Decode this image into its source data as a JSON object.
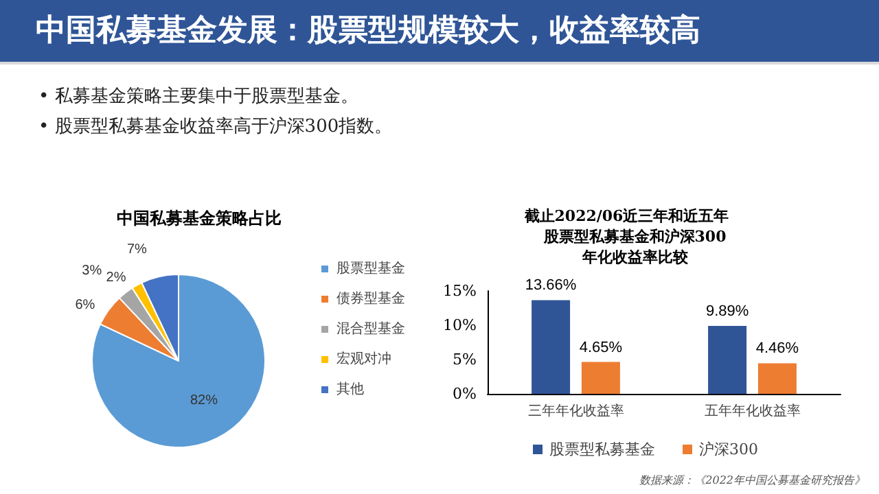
{
  "chart_data": [
    {
      "type": "other",
      "title": "中国私募基金发展：股票型规模较大，收益率较高",
      "annotations": [
        "•  私募基金策略主要集中于股票型基金。",
        "•  股票型私募基金收益率高于沪深300指数。"
      ]
    },
    {
      "type": "pie",
      "title": "中国私募基金策略占比",
      "categories": [
        "股票型基金",
        "债券型基金",
        "混合型基金",
        "宏观对冲",
        "其他"
      ],
      "values": [
        82,
        6,
        3,
        2,
        7
      ],
      "colors": [
        "#5b9bd5",
        "#ed7d31",
        "#a5a5a5",
        "#ffc000",
        "#4472c4"
      ],
      "value_labels": [
        "82%",
        "6%",
        "3%",
        "2%",
        "7%"
      ],
      "legend": "right"
    },
    {
      "type": "bar",
      "title": "截止2022/06近三年和近五年股票型私募基金和沪深300年化收益率比较",
      "categories": [
        "三年年化收益率",
        "五年年化收益率"
      ],
      "series": [
        {
          "name": "股票型私募基金",
          "color": "#2f5597",
          "values": [
            13.66,
            9.89
          ],
          "value_labels": [
            "13.66%",
            "9.89%"
          ]
        },
        {
          "name": "沪深300",
          "color": "#ed7d31",
          "values": [
            4.65,
            4.46
          ],
          "value_labels": [
            "4.65%",
            "4.46%"
          ]
        }
      ],
      "ylim": [
        0,
        15
      ],
      "yticks": [
        {
          "value": 0,
          "label": "0%"
        },
        {
          "value": 5,
          "label": "5%"
        },
        {
          "value": 10,
          "label": "10%"
        },
        {
          "value": 15,
          "label": "15%"
        }
      ],
      "grid": false,
      "legend": "bottom",
      "annotations": [
        "数据来源：《2022年中国公募基金研究报告》"
      ]
    }
  ]
}
